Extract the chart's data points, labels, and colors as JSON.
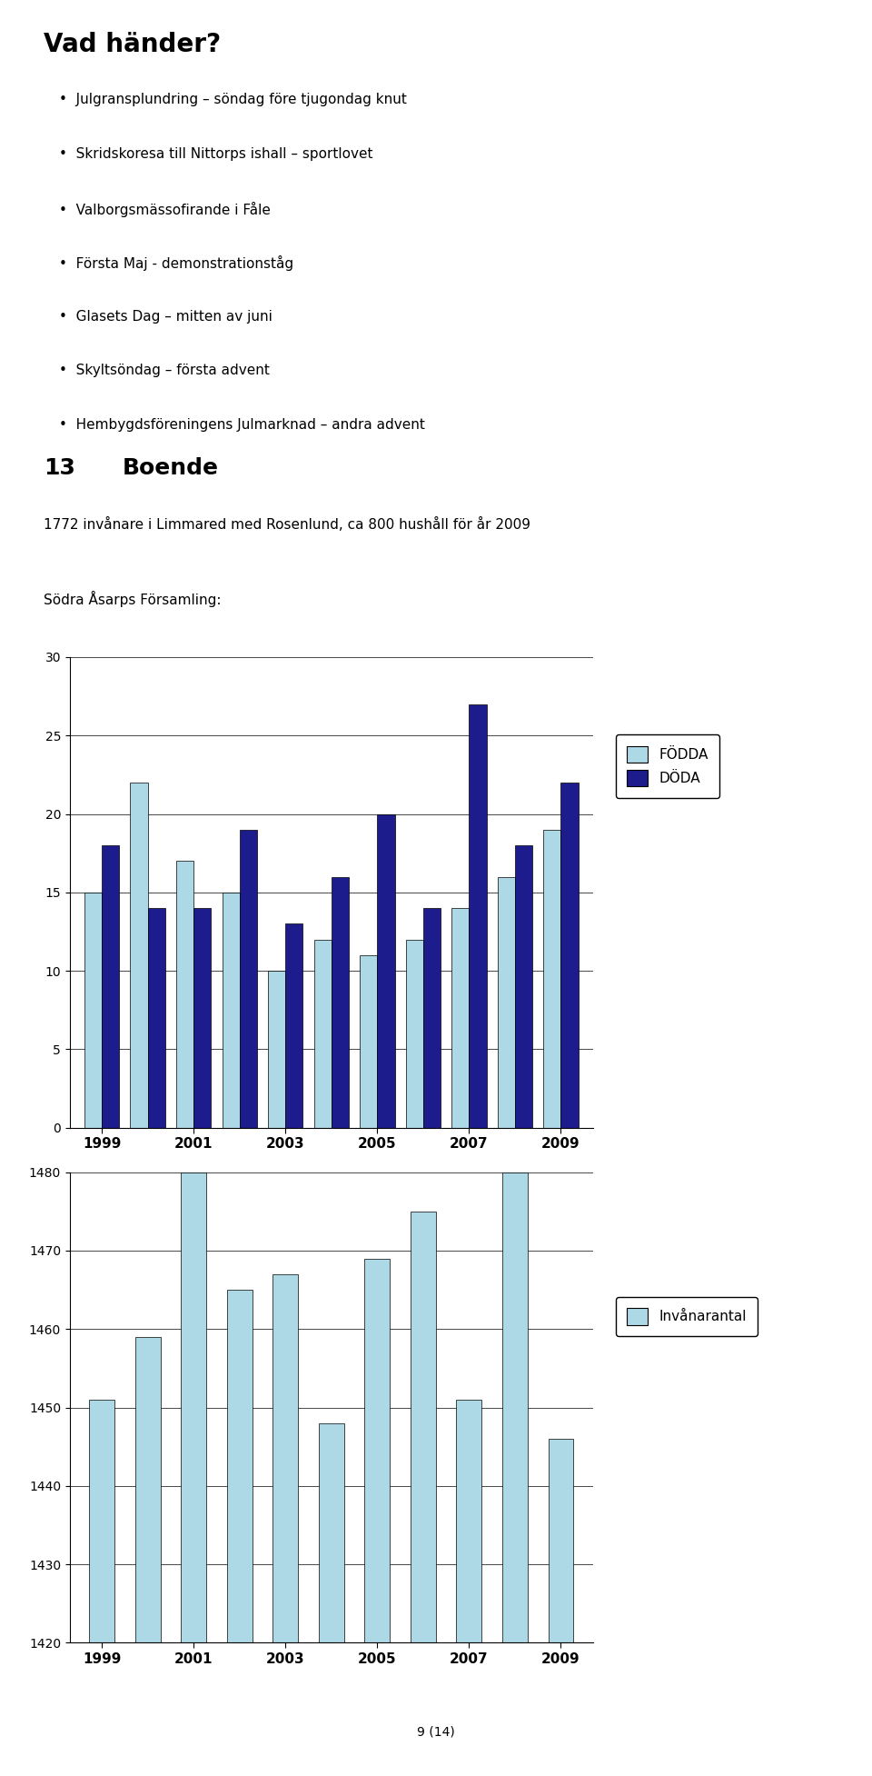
{
  "page_title": "Vad händer?",
  "bullets": [
    "Julgransplundring – söndag före tjugondag knut",
    "Skridskoresa till Nittorps ishall – sportlovet",
    "Valborgsmässofirande i Fåle",
    "Första Maj - demonstrationståg",
    "Glasets Dag – mitten av juni",
    "Skyltsöndag – första advent",
    "Hembygdsföreningens Julmarknad – andra advent"
  ],
  "section_number": "13",
  "section_title": "Boende",
  "intro_text": "1772 invånare i Limmared med Rosenlund, ca 800 hushåll för år 2009",
  "sub_text": "Södra Åsarps Församling:",
  "chart1": {
    "years": [
      1999,
      2000,
      2001,
      2002,
      2003,
      2004,
      2005,
      2006,
      2007,
      2008,
      2009
    ],
    "fodda": [
      15,
      22,
      17,
      15,
      10,
      12,
      11,
      12,
      14,
      16,
      19
    ],
    "doda": [
      18,
      14,
      14,
      19,
      13,
      16,
      20,
      14,
      27,
      18,
      22
    ],
    "fodda_color": "#ADD8E6",
    "doda_color": "#1C1C8C",
    "ylim": [
      0,
      30
    ],
    "yticks": [
      0,
      5,
      10,
      15,
      20,
      25,
      30
    ],
    "xtick_labels": [
      "1999",
      "2001",
      "2003",
      "2005",
      "2007",
      "2009"
    ],
    "legend_fodda": "FÖDDA",
    "legend_doda": "DÖDA"
  },
  "chart2": {
    "years": [
      1999,
      2000,
      2001,
      2002,
      2003,
      2004,
      2005,
      2006,
      2007,
      2008,
      2009
    ],
    "values": [
      1451,
      1459,
      1480,
      1465,
      1467,
      1448,
      1469,
      1475,
      1451,
      1480,
      1446
    ],
    "bar_color": "#ADD8E6",
    "ylim": [
      1420,
      1480
    ],
    "yticks": [
      1420,
      1430,
      1440,
      1450,
      1460,
      1470,
      1480
    ],
    "xtick_labels": [
      "1999",
      "2001",
      "2003",
      "2005",
      "2007",
      "2009"
    ],
    "legend_label": "Invånarantal"
  },
  "footer": "9 (14)",
  "background_color": "#ffffff"
}
